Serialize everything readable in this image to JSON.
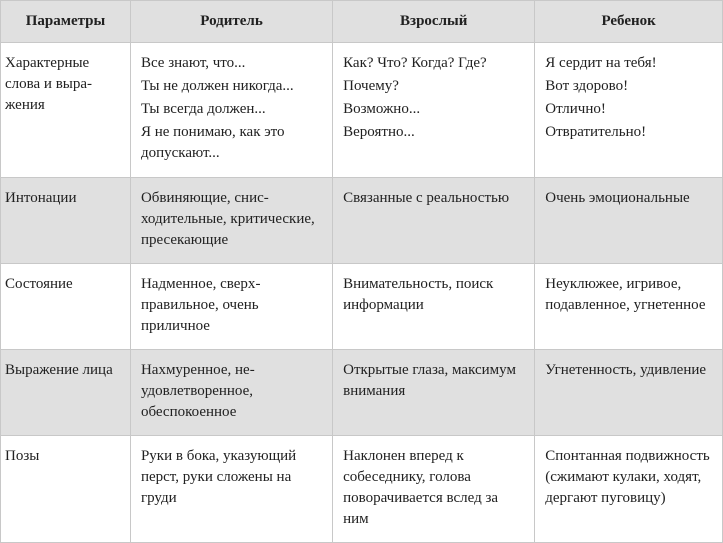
{
  "table": {
    "type": "table",
    "background_color": "#ffffff",
    "border_color": "#c8c8c8",
    "header_bg": "#e0e0e0",
    "shaded_bg": "#e0e0e0",
    "text_color": "#212121",
    "font_family": "Georgia, 'Times New Roman', serif",
    "font_size_pt": 11,
    "columns": [
      {
        "label": "Параметры",
        "width_pct": 18
      },
      {
        "label": "Родитель",
        "width_pct": 28
      },
      {
        "label": "Взрослый",
        "width_pct": 28
      },
      {
        "label": "Ребенок",
        "width_pct": 26
      }
    ],
    "rows": [
      {
        "shaded": false,
        "cells": [
          [
            "Характерные слова и выра­жения"
          ],
          [
            "Все знают, что...",
            "Ты не должен нико­гда...",
            "Ты всегда должен...",
            "Я не понимаю, как это допускают..."
          ],
          [
            "Как? Что? Когда? Где?",
            "Почему?",
            "Возможно...",
            "Вероятно..."
          ],
          [
            "Я сердит на тебя!",
            "Вот здорово!",
            "Отлично!",
            "Отвратительно!"
          ]
        ]
      },
      {
        "shaded": true,
        "cells": [
          [
            "Интонации"
          ],
          [
            "Обвиняющие, снис­ходительные, крити­ческие, пресекающие"
          ],
          [
            "Связанные с ре­альностью"
          ],
          [
            "Очень эмоцио­нальные"
          ]
        ]
      },
      {
        "shaded": false,
        "cells": [
          [
            "Состояние"
          ],
          [
            "Надменное, сверх­правильное, очень приличное"
          ],
          [
            "Внимательность, поиск информа­ции"
          ],
          [
            "Неуклюжее, иг­ривое, подавлен­ное, угнетенное"
          ]
        ]
      },
      {
        "shaded": true,
        "cells": [
          [
            "Выражение лица"
          ],
          [
            "Нахмуренное, не­удовлетворенное, обеспокоенное"
          ],
          [
            "Открытые глаза, максимум внима­ния"
          ],
          [
            "Угнетенность, удивление"
          ]
        ]
      },
      {
        "shaded": false,
        "cells": [
          [
            "Позы"
          ],
          [
            "Руки в бока, указую­щий перст, руки сло­жены на груди"
          ],
          [
            "Наклонен вперед к собеседнику, голо­ва поворачивается вслед за ним"
          ],
          [
            "Спонтанная под­вижность (сжи­мают кулаки, ходят, дергают пуговицу)"
          ]
        ]
      }
    ]
  }
}
